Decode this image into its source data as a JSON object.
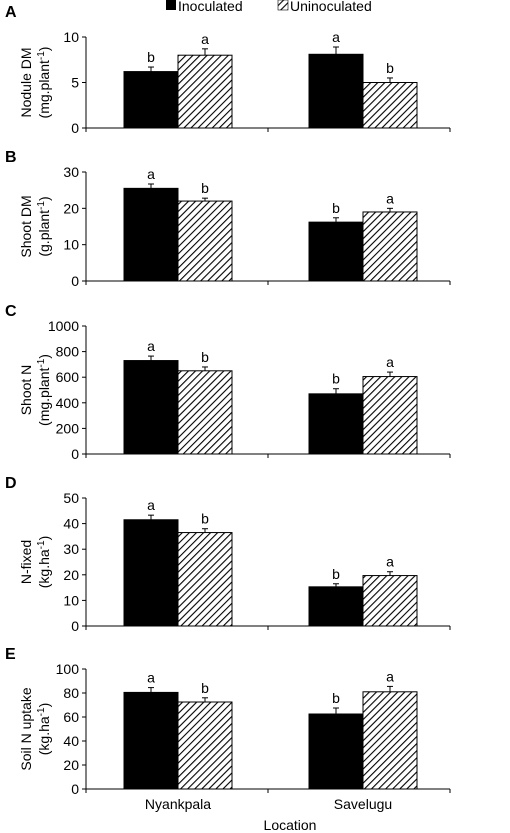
{
  "figure": {
    "xlabel": "Location",
    "categories": [
      "Nyankpala",
      "Savelugu"
    ],
    "legend": {
      "placement": "top-center",
      "entries": [
        {
          "label": "Inoculated",
          "fill": "solid-black"
        },
        {
          "label": "Uninoculated",
          "fill": "diagonal-hatch"
        }
      ]
    },
    "colors": {
      "inoculated": "#000000",
      "uninoculated_hatch": "#000000",
      "background": "#ffffff"
    }
  },
  "chart_data": [
    {
      "type": "bar",
      "panel": "A",
      "ylabel": {
        "main": "Nodule DM",
        "unit": "(mg.plant",
        "sup": "-1",
        "close": ")"
      },
      "ylim": [
        0,
        10
      ],
      "yticks": [
        0,
        5,
        10
      ],
      "categories": [
        "Nyankpala",
        "Savelugu"
      ],
      "series": [
        {
          "name": "Inoculated",
          "values": [
            6.2,
            8.1
          ],
          "errors": [
            0.5,
            0.8
          ],
          "letters": [
            "b",
            "a"
          ]
        },
        {
          "name": "Uninoculated",
          "values": [
            8.0,
            5.0
          ],
          "errors": [
            0.7,
            0.5
          ],
          "letters": [
            "a",
            "b"
          ]
        }
      ],
      "grid": false
    },
    {
      "type": "bar",
      "panel": "B",
      "ylabel": {
        "main": "Shoot DM",
        "unit": "(g.plant",
        "sup": "-1",
        "close": ")"
      },
      "ylim": [
        0,
        30
      ],
      "yticks": [
        0,
        10,
        20,
        30
      ],
      "categories": [
        "Nyankpala",
        "Savelugu"
      ],
      "series": [
        {
          "name": "Inoculated",
          "values": [
            25.5,
            16.2
          ],
          "errors": [
            1.2,
            1.2
          ],
          "letters": [
            "a",
            "b"
          ]
        },
        {
          "name": "Uninoculated",
          "values": [
            22.0,
            19.0
          ],
          "errors": [
            0.8,
            1.0
          ],
          "letters": [
            "b",
            "a"
          ]
        }
      ],
      "grid": false
    },
    {
      "type": "bar",
      "panel": "C",
      "ylabel": {
        "main": "Shoot N",
        "unit": "(mg.plant",
        "sup": "-1",
        "close": ")"
      },
      "ylim": [
        0,
        1000
      ],
      "yticks": [
        0,
        200,
        400,
        600,
        800,
        1000
      ],
      "categories": [
        "Nyankpala",
        "Savelugu"
      ],
      "series": [
        {
          "name": "Inoculated",
          "values": [
            730,
            470
          ],
          "errors": [
            35,
            40
          ],
          "letters": [
            "a",
            "b"
          ]
        },
        {
          "name": "Uninoculated",
          "values": [
            650,
            605
          ],
          "errors": [
            30,
            35
          ],
          "letters": [
            "b",
            "a"
          ]
        }
      ],
      "grid": false
    },
    {
      "type": "bar",
      "panel": "D",
      "ylabel": {
        "main": "N-fixed",
        "unit": "(kg.ha",
        "sup": "-1",
        "close": ")"
      },
      "ylim": [
        0,
        50
      ],
      "yticks": [
        0,
        10,
        20,
        30,
        40,
        50
      ],
      "categories": [
        "Nyankpala",
        "Savelugu"
      ],
      "series": [
        {
          "name": "Inoculated",
          "values": [
            41.5,
            15.3
          ],
          "errors": [
            1.8,
            1.2
          ],
          "letters": [
            "a",
            "b"
          ]
        },
        {
          "name": "Uninoculated",
          "values": [
            36.5,
            19.7
          ],
          "errors": [
            1.5,
            1.5
          ],
          "letters": [
            "b",
            "a"
          ]
        }
      ],
      "grid": false
    },
    {
      "type": "bar",
      "panel": "E",
      "ylabel": {
        "main": "Soil N uptake",
        "unit": "(kg.ha",
        "sup": "-1",
        "close": ")"
      },
      "ylim": [
        0,
        100
      ],
      "yticks": [
        0,
        20,
        40,
        60,
        80,
        100
      ],
      "categories": [
        "Nyankpala",
        "Savelugu"
      ],
      "series": [
        {
          "name": "Inoculated",
          "values": [
            80.5,
            62.5
          ],
          "errors": [
            4.0,
            5.0
          ],
          "letters": [
            "a",
            "b"
          ]
        },
        {
          "name": "Uninoculated",
          "values": [
            72.5,
            81.0
          ],
          "errors": [
            3.5,
            4.5
          ],
          "letters": [
            "b",
            "a"
          ]
        }
      ],
      "grid": false
    }
  ]
}
